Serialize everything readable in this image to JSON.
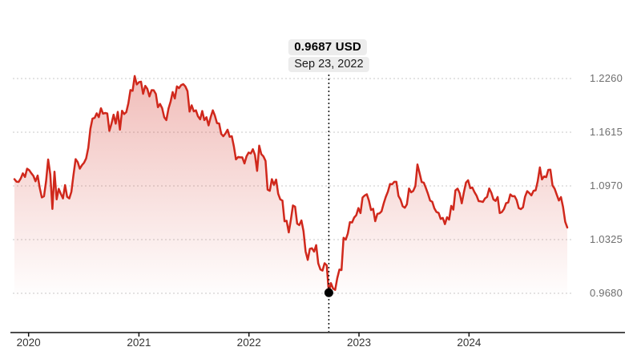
{
  "tooltip": {
    "value": "0.9687 USD",
    "date": "Sep 23, 2022"
  },
  "chart_data": {
    "type": "line",
    "title": "",
    "grid": "dashed-horizontal",
    "legend_position": "none",
    "x_start": "2019-11-15",
    "interval_days": 7,
    "xlabel": "",
    "ylabel": "",
    "ylim": [
      0.968,
      1.226
    ],
    "y_ticks": [
      1.226,
      1.1615,
      1.097,
      1.0325,
      0.968
    ],
    "y_tick_labels": [
      "1.2260",
      "1.1615",
      "1.0970",
      "1.0325",
      "0.9680"
    ],
    "x_tick_years": [
      2020,
      2021,
      2022,
      2023,
      2024
    ],
    "x_tick_labels": [
      "2020",
      "2021",
      "2022",
      "2023",
      "2024"
    ],
    "marker": {
      "value": 0.9687,
      "label_value": "0.9687 USD",
      "label_date": "Sep 23, 2022"
    },
    "colors": {
      "line": "#d0281c",
      "fill_top": "rgba(208,40,28,0.30)",
      "fill_bottom": "rgba(208,40,28,0)",
      "grid": "#c9c9c9",
      "axis": "#111111",
      "marker": "#000000",
      "crosshair": "#111111",
      "tooltip_bg": "#ececec"
    },
    "values": [
      1.1051,
      1.1021,
      1.1018,
      1.106,
      1.1121,
      1.1078,
      1.1177,
      1.116,
      1.1122,
      1.109,
      1.1026,
      1.1094,
      1.0946,
      1.0831,
      1.0846,
      1.1026,
      1.1288,
      1.1107,
      1.0694,
      1.1141,
      1.0808,
      1.0935,
      1.0875,
      1.082,
      1.098,
      1.0839,
      1.082,
      1.0901,
      1.1101,
      1.1292,
      1.1256,
      1.1177,
      1.1219,
      1.1248,
      1.13,
      1.1428,
      1.1656,
      1.1778,
      1.1787,
      1.1842,
      1.1796,
      1.1903,
      1.1838,
      1.1846,
      1.184,
      1.1631,
      1.1716,
      1.1826,
      1.1718,
      1.186,
      1.1647,
      1.1873,
      1.1834,
      1.1857,
      1.1963,
      1.2121,
      1.2113,
      1.229,
      1.2189,
      1.2216,
      1.2222,
      1.2076,
      1.2171,
      1.2136,
      1.2045,
      1.212,
      1.2119,
      1.2075,
      1.1915,
      1.1955,
      1.1903,
      1.1794,
      1.176,
      1.1899,
      1.1983,
      1.2097,
      1.202,
      1.2166,
      1.2144,
      1.2181,
      1.2193,
      1.2166,
      1.2109,
      1.1863,
      1.1938,
      1.1865,
      1.1878,
      1.1806,
      1.177,
      1.187,
      1.1761,
      1.1795,
      1.1697,
      1.1795,
      1.1878,
      1.1814,
      1.1725,
      1.172,
      1.1595,
      1.1567,
      1.1601,
      1.1645,
      1.156,
      1.1567,
      1.1445,
      1.1289,
      1.1318,
      1.1313,
      1.1313,
      1.124,
      1.1326,
      1.137,
      1.136,
      1.1411,
      1.1343,
      1.1151,
      1.1453,
      1.1352,
      1.1324,
      1.127,
      1.0926,
      1.0911,
      1.1051,
      1.0983,
      1.1046,
      1.0876,
      1.0808,
      1.0794,
      1.0545,
      1.0551,
      1.0412,
      1.0563,
      1.0735,
      1.072,
      1.0517,
      1.0499,
      1.0555,
      1.0426,
      1.0183,
      1.0081,
      1.0213,
      1.0221,
      1.0181,
      1.0259,
      1.0039,
      0.9966,
      0.9952,
      1.0041,
      1.0016,
      0.9687,
      0.9802,
      0.9737,
      0.9721,
      0.9861,
      0.9965,
      0.9959,
      1.0347,
      1.0324,
      1.0398,
      1.0535,
      1.0531,
      1.059,
      1.0618,
      1.0703,
      1.0644,
      1.083,
      1.0855,
      1.087,
      1.0795,
      1.068,
      1.0695,
      1.0546,
      1.0635,
      1.064,
      1.0665,
      1.076,
      1.0839,
      1.0901,
      1.0993,
      1.0989,
      1.1019,
      1.1019,
      1.085,
      1.0805,
      1.0725,
      1.0707,
      1.0749,
      1.0939,
      1.0893,
      1.0909,
      1.0968,
      1.1227,
      1.1126,
      1.1016,
      1.1009,
      1.0945,
      1.0873,
      1.0794,
      1.0779,
      1.07,
      1.0657,
      1.0646,
      1.0573,
      1.0586,
      1.0511,
      1.0594,
      1.0565,
      1.073,
      1.0685,
      1.0916,
      1.0937,
      1.0882,
      1.0761,
      1.0895,
      1.101,
      1.1038,
      1.0943,
      1.0951,
      1.0897,
      1.0853,
      1.0787,
      1.0784,
      1.0777,
      1.082,
      1.0838,
      1.0939,
      1.0888,
      1.0808,
      1.079,
      1.0837,
      1.0644,
      1.0656,
      1.0693,
      1.0762,
      1.0771,
      1.0868,
      1.0846,
      1.0848,
      1.08,
      1.0704,
      1.0691,
      1.0713,
      1.0841,
      1.0907,
      1.0884,
      1.0856,
      1.0911,
      1.0917,
      1.1027,
      1.1192,
      1.1048,
      1.1085,
      1.1075,
      1.1163,
      1.1164,
      1.0976,
      1.0937,
      1.0866,
      1.0795,
      1.0835,
      1.0718,
      1.054,
      1.047
    ]
  }
}
